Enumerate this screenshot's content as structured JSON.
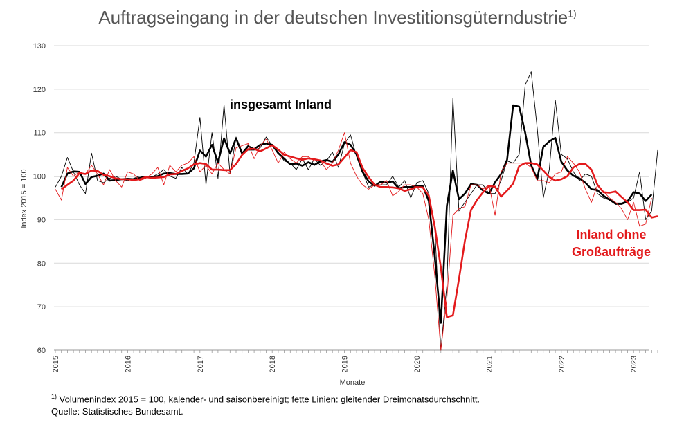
{
  "chart_data": {
    "type": "line",
    "title": "Auftragseingang in der deutschen Investitionsgüterndustrie",
    "title_note": "1)",
    "xlabel": "Monate",
    "ylabel": "Index 2015 = 100",
    "ylim": [
      60,
      130
    ],
    "yticks": [
      60,
      70,
      80,
      90,
      100,
      110,
      120,
      130
    ],
    "reference_line": 100,
    "x_start": "2015-01",
    "x_tick_labels": [
      "2015",
      "2016",
      "2017",
      "2018",
      "2019",
      "2020",
      "2021",
      "2022",
      "2023"
    ],
    "series": [
      {
        "name": "insgesamt Inland",
        "kind": "monthly",
        "color": "#000000",
        "values": [
          97.5,
          100,
          104.3,
          101,
          98,
          96,
          105.3,
          99,
          98.5,
          99.5,
          100,
          99.3,
          99,
          99.5,
          100,
          99.8,
          99.8,
          100.5,
          101.5,
          100,
          99.5,
          102,
          100.5,
          103,
          113.5,
          98,
          110,
          99.5,
          116.5,
          100.5,
          109,
          105.5,
          106,
          106,
          106.5,
          109,
          107,
          105.5,
          103.5,
          103,
          101.5,
          104,
          101.5,
          104,
          102.5,
          103.5,
          105.5,
          102,
          107.5,
          109.5,
          104.5,
          101,
          97.5,
          98,
          98,
          98,
          100,
          97.5,
          99,
          95,
          98.5,
          99,
          96,
          88,
          60,
          75,
          118,
          92,
          94,
          96,
          98,
          98,
          96,
          96,
          99,
          103.5,
          103,
          105,
          121,
          124,
          111,
          95,
          101.5,
          117.5,
          105,
          104,
          101,
          99,
          100.5,
          100,
          96,
          95,
          94.5,
          93.5,
          93.5,
          94,
          95,
          101,
          90,
          92,
          106
        ],
        "smoothed": [
          97.5,
          100.6,
          101.1,
          101.0,
          98.2,
          99.8,
          100.1,
          100.6,
          99.0,
          99.1,
          99.3,
          99.4,
          99.3,
          99.6,
          99.8,
          99.8,
          100.0,
          100.6,
          100.7,
          100.5,
          100.5,
          100.6,
          101.8,
          105.9,
          104.5,
          107.2,
          103.2,
          108.7,
          105.2,
          108.7,
          105.2,
          106.9,
          106.2,
          107.2,
          107.5,
          107.2,
          105.3,
          104.0,
          102.7,
          102.9,
          102.4,
          103.2,
          102.6,
          103.4,
          103.7,
          103.3,
          105.0,
          107.8,
          107.2,
          105.0,
          101.0,
          98.8,
          97.8,
          98.7,
          98.5,
          98.8,
          97.2,
          97.5,
          97.5,
          97.8,
          97.7,
          94.3,
          81.3,
          66.3,
          93.2,
          101.3,
          94.7,
          96.0,
          98.2,
          98.0,
          96.7,
          96.0,
          98.6,
          100.5,
          103.8,
          116.3,
          116.0,
          110.0,
          102.5,
          99.3,
          106.7,
          108.0,
          108.8,
          103.3,
          101.3,
          100.1,
          99.5,
          98.5,
          97.0,
          96.8,
          95.5,
          94.6,
          93.7,
          93.7,
          94.2,
          96.3,
          96.0,
          94.3,
          95.8
        ]
      },
      {
        "name": "Inland ohne Großaufträge",
        "kind": "monthly",
        "color": "#e31a1c",
        "values": [
          97,
          94.5,
          102,
          100,
          101,
          100.5,
          102.5,
          100.5,
          98,
          101.5,
          99,
          97.5,
          101,
          100.5,
          99,
          99.5,
          100.5,
          102,
          98,
          102.5,
          101,
          102.5,
          103,
          104.5,
          101,
          102.5,
          100.5,
          103,
          101.5,
          100.5,
          106.5,
          107,
          107.5,
          104,
          107,
          108.5,
          106,
          103,
          105.5,
          104,
          103,
          104.5,
          104.5,
          103.5,
          103.5,
          101.5,
          103,
          106,
          110,
          103,
          100,
          98,
          97,
          98,
          98,
          99,
          95.5,
          96.5,
          98,
          98,
          97.5,
          96,
          90,
          77,
          60,
          72,
          91,
          92.5,
          93,
          98,
          98,
          97,
          98,
          91,
          101,
          103,
          103,
          103,
          103,
          102,
          99,
          99,
          98.5,
          100.5,
          101,
          104.5,
          103,
          101,
          97,
          94,
          98,
          96.5,
          95,
          94,
          92.5,
          90,
          94,
          88.5,
          89,
          95
        ],
        "smoothed": [
          97,
          98.0,
          99.0,
          100.7,
          100.5,
          101.3,
          101.2,
          100.3,
          100.0,
          99.5,
          99.3,
          99.3,
          99.1,
          99.3,
          99.8,
          99.6,
          99.7,
          99.8,
          100.4,
          100.5,
          101.2,
          101.8,
          102.7,
          103.0,
          102.8,
          101.5,
          101.5,
          101.4,
          101.4,
          102.8,
          104.9,
          106.2,
          106.3,
          105.7,
          106.4,
          107.1,
          106.1,
          104.9,
          104.5,
          104.1,
          103.8,
          104.1,
          103.9,
          103.6,
          102.9,
          102.4,
          102.7,
          104.3,
          106.0,
          105.5,
          101.9,
          99.8,
          98.0,
          97.5,
          97.5,
          97.4,
          97.2,
          96.6,
          97.0,
          97.5,
          97.4,
          95.5,
          88.3,
          79.0,
          67.6,
          68.0,
          76.3,
          85.2,
          92.2,
          94.5,
          96.3,
          97.7,
          97.6,
          95.3,
          96.7,
          98.3,
          102.3,
          103.0,
          103.0,
          102.7,
          101.3,
          99.8,
          99.0,
          99.3,
          100.0,
          102.0,
          102.8,
          102.8,
          101.5,
          98.0,
          96.3,
          96.2,
          96.5,
          95.2,
          94.0,
          92.2,
          92.2,
          92.3,
          90.5,
          90.8
        ]
      }
    ],
    "annotations": {
      "series1_label": "insgesamt  Inland",
      "series2_label_line1": "Inland ohne",
      "series2_label_line2": "Großaufträge"
    }
  },
  "footnote": {
    "marker": "1)",
    "text": " Volumenindex 2015 = 100,  kalender- und saisonbereinigt; fette Linien: gleitender Dreimonatsdurchschnitt.",
    "source": "Quelle: Statistisches Bundesamt."
  }
}
